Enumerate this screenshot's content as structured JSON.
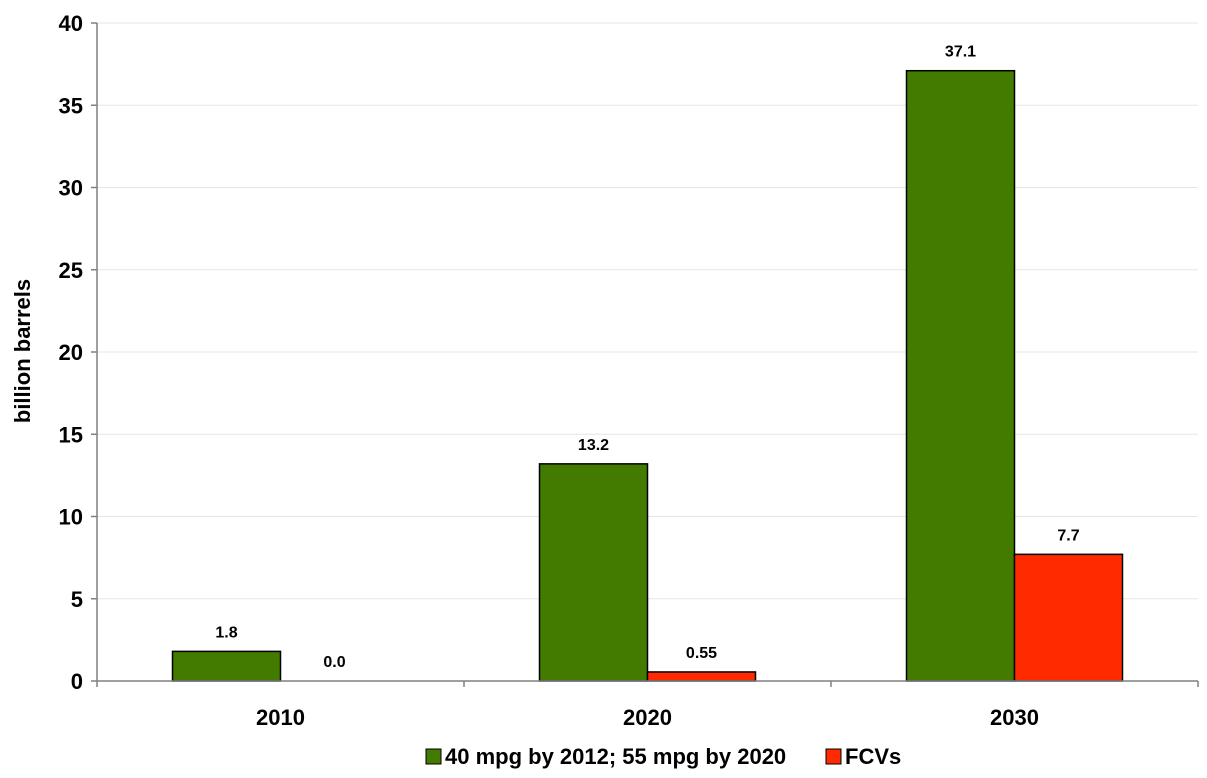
{
  "chart_data": {
    "type": "bar",
    "title": "",
    "xlabel": "",
    "ylabel": "billion barrels",
    "categories": [
      "2010",
      "2020",
      "2030"
    ],
    "series": [
      {
        "name": "40 mpg by 2012; 55 mpg by 2020",
        "values": [
          1.8,
          13.2,
          37.1
        ],
        "labels": [
          "1.8",
          "13.2",
          "37.1"
        ],
        "color": "#437A00"
      },
      {
        "name": "FCVs",
        "values": [
          0.0,
          0.55,
          7.7
        ],
        "labels": [
          "0.0",
          "0.55",
          "7.7"
        ],
        "color": "#FF2A00"
      }
    ],
    "ylim": [
      0,
      40
    ],
    "yticks": [
      0,
      5,
      10,
      15,
      20,
      25,
      30,
      35,
      40
    ],
    "grid": true,
    "legend_position": "bottom"
  }
}
